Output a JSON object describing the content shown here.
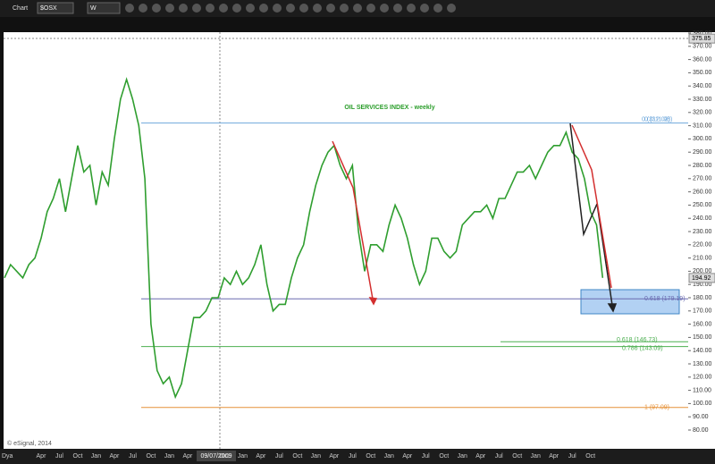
{
  "chart_data": {
    "type": "line",
    "title": "OIL SERVICES INDEX - weekly",
    "toolbar": {
      "window": "Chart",
      "symbol": "$OSX",
      "interval": "W"
    },
    "corner_label": "Dya",
    "copyright": "© eSignal, 2014",
    "cursor_date": "09/07/2009",
    "categories": [
      null,
      null,
      null,
      null,
      null,
      null,
      "Apr",
      null,
      null,
      "Jul",
      null,
      null,
      "Oct",
      null,
      null,
      "Jan",
      null,
      null,
      "Apr",
      null,
      null,
      "Jul",
      null,
      null,
      "Oct",
      null,
      null,
      "Jan",
      null,
      null,
      "Apr",
      null,
      null,
      null,
      null,
      null,
      "Oct",
      null,
      null,
      "Jan",
      null,
      null,
      "Apr",
      null,
      null,
      "Jul",
      null,
      null,
      "Oct",
      null,
      null,
      "Jan",
      null,
      null,
      "Apr",
      null,
      null,
      "Jul",
      null,
      null,
      "Oct",
      null,
      null,
      "Jan",
      null,
      null,
      "Apr",
      null,
      null,
      "Jul",
      null,
      null,
      "Oct",
      null,
      null,
      "Jan",
      null,
      null,
      "Apr",
      null,
      null,
      "Jul",
      null,
      null,
      "Oct",
      null,
      null,
      "Jan",
      null,
      null,
      "Apr",
      null,
      null,
      "Jul",
      null,
      null,
      "Oct",
      null,
      null
    ],
    "series": [
      {
        "name": "$OSX",
        "color": "#2f9e2f",
        "values": [
          195,
          205,
          200,
          195,
          205,
          210,
          225,
          245,
          255,
          270,
          245,
          270,
          295,
          275,
          280,
          250,
          275,
          265,
          300,
          330,
          345,
          330,
          310,
          270,
          160,
          125,
          115,
          120,
          105,
          115,
          140,
          165,
          165,
          170,
          180,
          180,
          195,
          190,
          200,
          190,
          195,
          205,
          220,
          190,
          170,
          175,
          175,
          195,
          210,
          220,
          245,
          265,
          280,
          290,
          295,
          280,
          270,
          280,
          230,
          200,
          220,
          220,
          215,
          235,
          250,
          240,
          225,
          205,
          190,
          200,
          225,
          225,
          215,
          210,
          215,
          235,
          240,
          245,
          245,
          250,
          240,
          255,
          255,
          265,
          275,
          275,
          280,
          270,
          280,
          290,
          295,
          295,
          305,
          290,
          285,
          270,
          245,
          235,
          195
        ]
      }
    ],
    "ylim": [
      80,
      380
    ],
    "yticks": [
      {
        "value": 80,
        "label": "80.00"
      },
      {
        "value": 90,
        "label": "90.00"
      },
      {
        "value": 100,
        "label": "100.00"
      },
      {
        "value": 110,
        "label": "110.00"
      },
      {
        "value": 120,
        "label": "120.00"
      },
      {
        "value": 130,
        "label": "130.00"
      },
      {
        "value": 140,
        "label": "140.00"
      },
      {
        "value": 150,
        "label": "150.00"
      },
      {
        "value": 160,
        "label": "160.00"
      },
      {
        "value": 170,
        "label": "170.00"
      },
      {
        "value": 180,
        "label": "180.00"
      },
      {
        "value": 190,
        "label": "190.00"
      },
      {
        "value": 200,
        "label": "200.00"
      },
      {
        "value": 210,
        "label": "210.00"
      },
      {
        "value": 220,
        "label": "220.00"
      },
      {
        "value": 230,
        "label": "230.00"
      },
      {
        "value": 240,
        "label": "240.00"
      },
      {
        "value": 250,
        "label": "250.00"
      },
      {
        "value": 260,
        "label": "260.00"
      },
      {
        "value": 270,
        "label": "270.00"
      },
      {
        "value": 280,
        "label": "280.00"
      },
      {
        "value": 290,
        "label": "290.00"
      },
      {
        "value": 300,
        "label": "300.00"
      },
      {
        "value": 310,
        "label": "310.00"
      },
      {
        "value": 320,
        "label": "320.00"
      },
      {
        "value": 330,
        "label": "330.00"
      },
      {
        "value": 340,
        "label": "340.00"
      },
      {
        "value": 350,
        "label": "350.00"
      },
      {
        "value": 360,
        "label": "360.00"
      },
      {
        "value": 370,
        "label": "370.00"
      },
      {
        "value": 380,
        "label": "380.00"
      }
    ],
    "price_markers": [
      {
        "value": 375.85,
        "label": "375.85"
      },
      {
        "value": 194.92,
        "label": "194.92"
      }
    ],
    "levels": [
      {
        "value": 311.98,
        "label": "0 (311.98)",
        "color": "#6fa8dc"
      },
      {
        "value": 179.19,
        "label": "0.618 (179.19)",
        "color": "#6a6ab0"
      },
      {
        "value": 146.73,
        "label": "0.618 (146.73)",
        "color": "#4caf50"
      },
      {
        "value": 143.09,
        "label": "0.786 (143.09)",
        "color": "#4caf50"
      },
      {
        "value": 97.09,
        "label": "1 (97.09)",
        "color": "#e69138"
      }
    ],
    "level_note": "0 (312.02)"
  }
}
